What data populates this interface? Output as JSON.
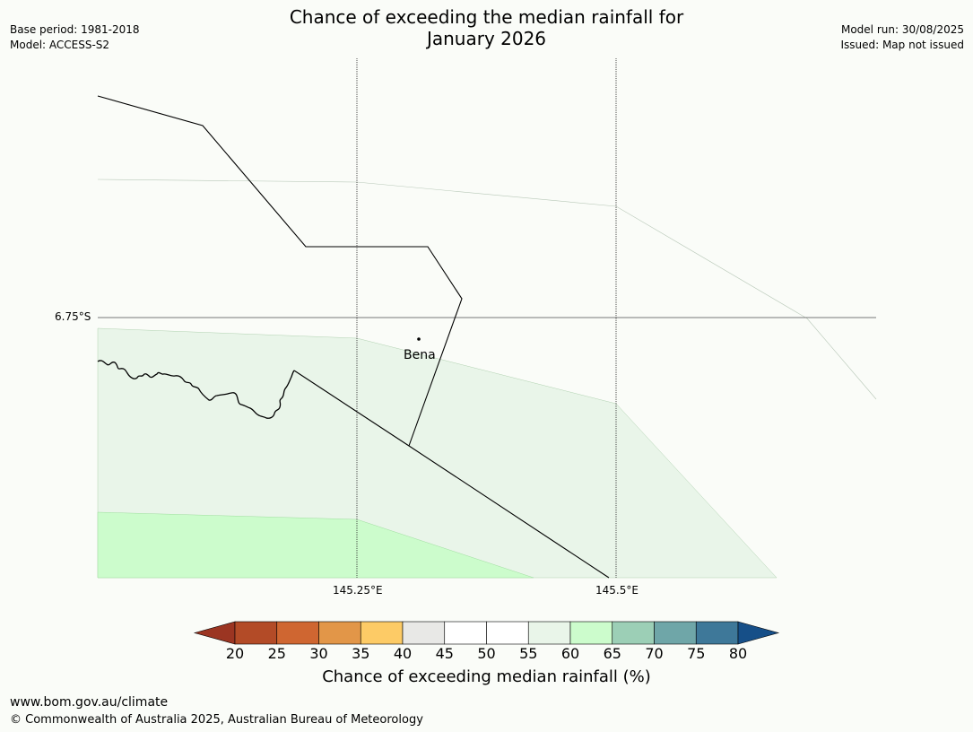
{
  "header": {
    "title_line1": "Chance of exceeding the median rainfall for",
    "title_line2": "January 2026",
    "base_period": "Base period: 1981-2018",
    "model": "Model: ACCESS-S2",
    "model_run": "Model run: 30/08/2025",
    "issued": "Issued: Map not issued"
  },
  "map": {
    "lat_label": "6.75°S",
    "lon_labels": [
      "145.25°E",
      "145.5°E"
    ],
    "place_name": "Bena",
    "region_colors": {
      "band_55_60": "#e9f5e9",
      "band_60_65": "#ccfccc",
      "background": "#fafcf8"
    }
  },
  "colorbar": {
    "ticks": [
      "20",
      "25",
      "30",
      "35",
      "40",
      "45",
      "50",
      "55",
      "60",
      "65",
      "70",
      "75",
      "80"
    ],
    "colors": [
      "#9b3522",
      "#b34b27",
      "#cf6631",
      "#e29648",
      "#fdcb66",
      "#e8e8e6",
      "#ffffff",
      "#ffffff",
      "#e9f5e9",
      "#ccfccc",
      "#9ccfb6",
      "#6fa6a8",
      "#3e7899",
      "#164f88"
    ],
    "label": "Chance of exceeding median rainfall (%)"
  },
  "footer": {
    "url": "www.bom.gov.au/climate",
    "copyright": "© Commonwealth of Australia 2025, Australian Bureau of Meteorology"
  }
}
